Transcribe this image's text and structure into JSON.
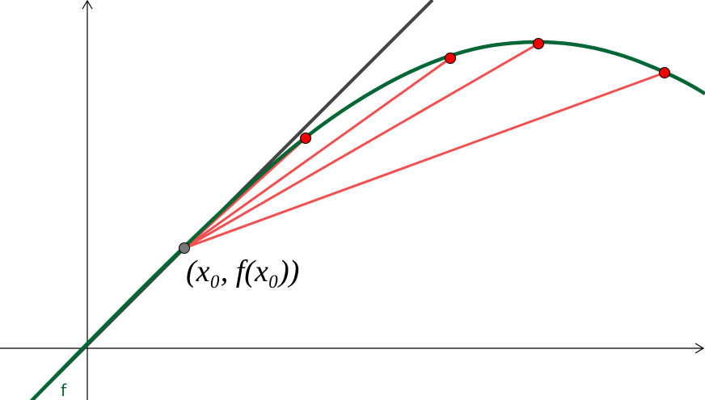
{
  "point_label": "(x₀, f(x₀))",
  "curve_label": "f"
}
